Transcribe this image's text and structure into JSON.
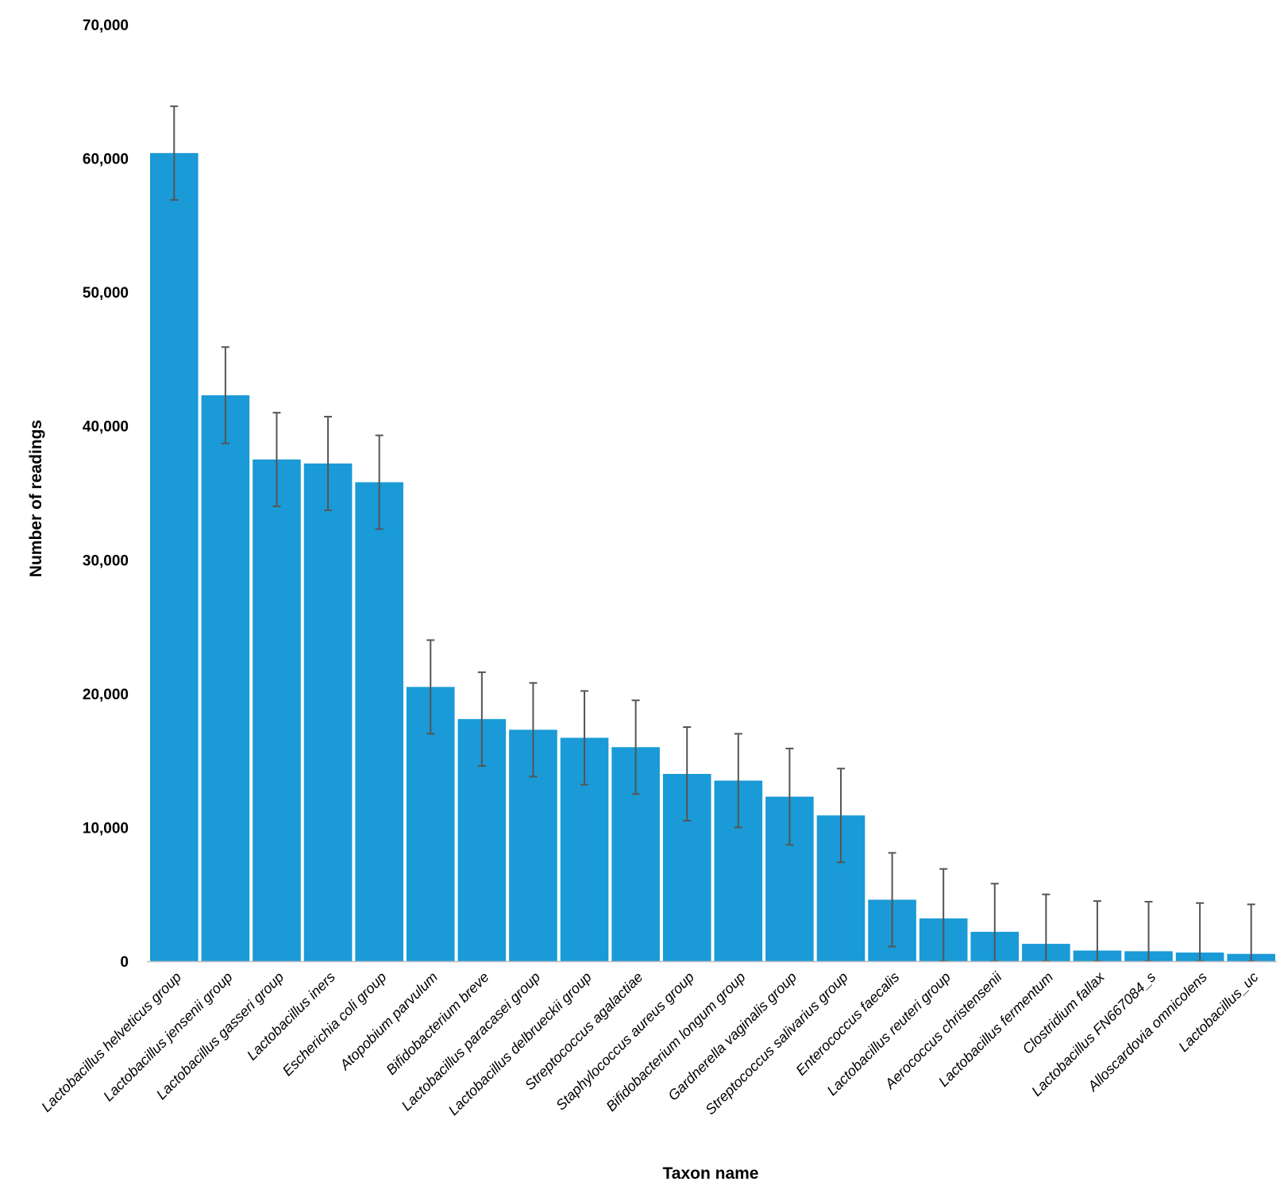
{
  "chart_data": {
    "type": "bar",
    "title": "",
    "xlabel": "Taxon name",
    "ylabel": "Number of readings",
    "ylim": [
      0,
      70000
    ],
    "yticks": [
      0,
      10000,
      20000,
      30000,
      40000,
      50000,
      60000,
      70000
    ],
    "ytick_labels": [
      "0",
      "10,000",
      "20,000",
      "30,000",
      "40,000",
      "50,000",
      "60,000",
      "70,000"
    ],
    "grid": false,
    "legend": "none",
    "bar_color": "#1a9ad6",
    "error_bar_color": "#555555",
    "categories": [
      "Lactobacillus helveticus group",
      "Lactobacillus jensenii group",
      "Lactobacillus gasseri group",
      "Lactobacillus iners",
      "Escherichia coli group",
      "Atopobium parvulum",
      "Bifidobacterium breve",
      "Lactobacillus paracasei group",
      "Lactobacillus delbrueckii group",
      "Streptococcus agalactiae",
      "Staphylococcus aureus group",
      "Bifidobacterium longum group",
      "Gardnerella vaginalis group",
      "Streptococcus salivarius group",
      "Enterococcus faecalis",
      "Lactobacillus reuteri group",
      "Aerococcus christensenii",
      "Lactobacillus fermentum",
      "Clostridium fallax",
      "Lactobacillus FN667084_s",
      "Alloscardovia omnicolens",
      "Lactobacillus_uc"
    ],
    "values": [
      60400,
      42300,
      37500,
      37200,
      35800,
      20500,
      18100,
      17300,
      16700,
      16000,
      14000,
      13500,
      12300,
      10900,
      4600,
      3200,
      2200,
      1300,
      800,
      750,
      650,
      550
    ],
    "error": [
      3500,
      3600,
      3500,
      3500,
      3500,
      3500,
      3500,
      3500,
      3500,
      3500,
      3500,
      3500,
      3600,
      3500,
      3500,
      3700,
      3600,
      3700,
      3700,
      3700,
      3700,
      3700
    ]
  }
}
